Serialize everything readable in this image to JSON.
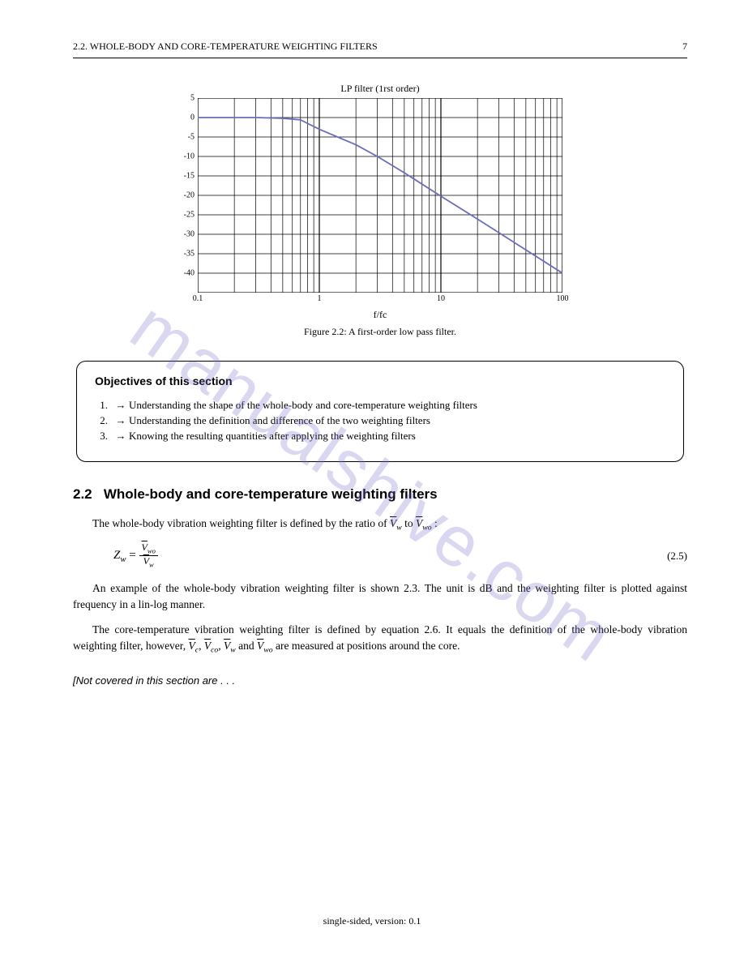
{
  "header": {
    "section": "2.2.  WHOLE-BODY AND CORE-TEMPERATURE WEIGHTING FILTERS",
    "page": "7"
  },
  "chart": {
    "title": "LP filter (1rst order)",
    "type": "line",
    "line_color": "#6a6db8",
    "line_width": 1.8,
    "grid_color": "#000000",
    "background_color": "#ffffff",
    "xlim_log": [
      0.1,
      100
    ],
    "ylim": [
      -45,
      5
    ],
    "ytick_step": 5,
    "xticks_log": [
      0.1,
      1,
      10,
      100
    ],
    "ytick_labels": [
      "5",
      "0",
      "-5",
      "-10",
      "-15",
      "-20",
      "-25",
      "-30",
      "-35",
      "-40"
    ],
    "xtick_labels": [
      "0.1",
      "1",
      "10",
      "100"
    ],
    "x_axis_title": "f/fc",
    "curve_points_log": [
      [
        0.1,
        0
      ],
      [
        0.3,
        0
      ],
      [
        0.5,
        -0.2
      ],
      [
        0.7,
        -0.6
      ],
      [
        1.0,
        -3.0
      ],
      [
        2.0,
        -7.0
      ],
      [
        3.0,
        -10.0
      ],
      [
        5.0,
        -14.2
      ],
      [
        10.0,
        -20.2
      ],
      [
        20.0,
        -26.1
      ],
      [
        50.0,
        -34.0
      ],
      [
        100.0,
        -40.0
      ]
    ],
    "caption": "Figure 2.2: A first-order low pass filter."
  },
  "objectives_box": {
    "title": "Objectives of this section",
    "items": [
      "Understanding the shape of the whole-body and core-temperature weighting filters",
      "Understanding the definition and difference of the two weighting filters",
      "Knowing the resulting quantities after applying the weighting filters"
    ]
  },
  "section": {
    "number": "2.2",
    "title": "Whole-body and core-temperature weighting filters",
    "p1_a": "The whole-body vibration weighting filter is defined by the ratio of ",
    "p1_b": " to ",
    "p1_c": ":",
    "eq1_lhs": "Z",
    "eq1_sub": "w",
    "eq1_eq": " = ",
    "eq1_num": "V̄",
    "eq1_num_sub": "wo",
    "eq1_den": "V̄",
    "eq1_den_sub": "w",
    "eq1_number": "(2.5)",
    "p2": "An example of the whole-body vibration weighting filter is shown 2.3. The unit is dB and the weighting filter is plotted against frequency in a lin-log manner.",
    "p3_a": "The core-temperature vibration weighting filter is defined by equation 2.6. It equals the definition of the whole-body vibration weighting filter, however,  ",
    "p3_b": ", ",
    "p3_c": ", ",
    "p3_d": " and ",
    "p3_e": " are measured at positions around the core."
  },
  "not_covered": "[Not covered in this section are . . .",
  "footer": "single-sided, version: 0.1"
}
